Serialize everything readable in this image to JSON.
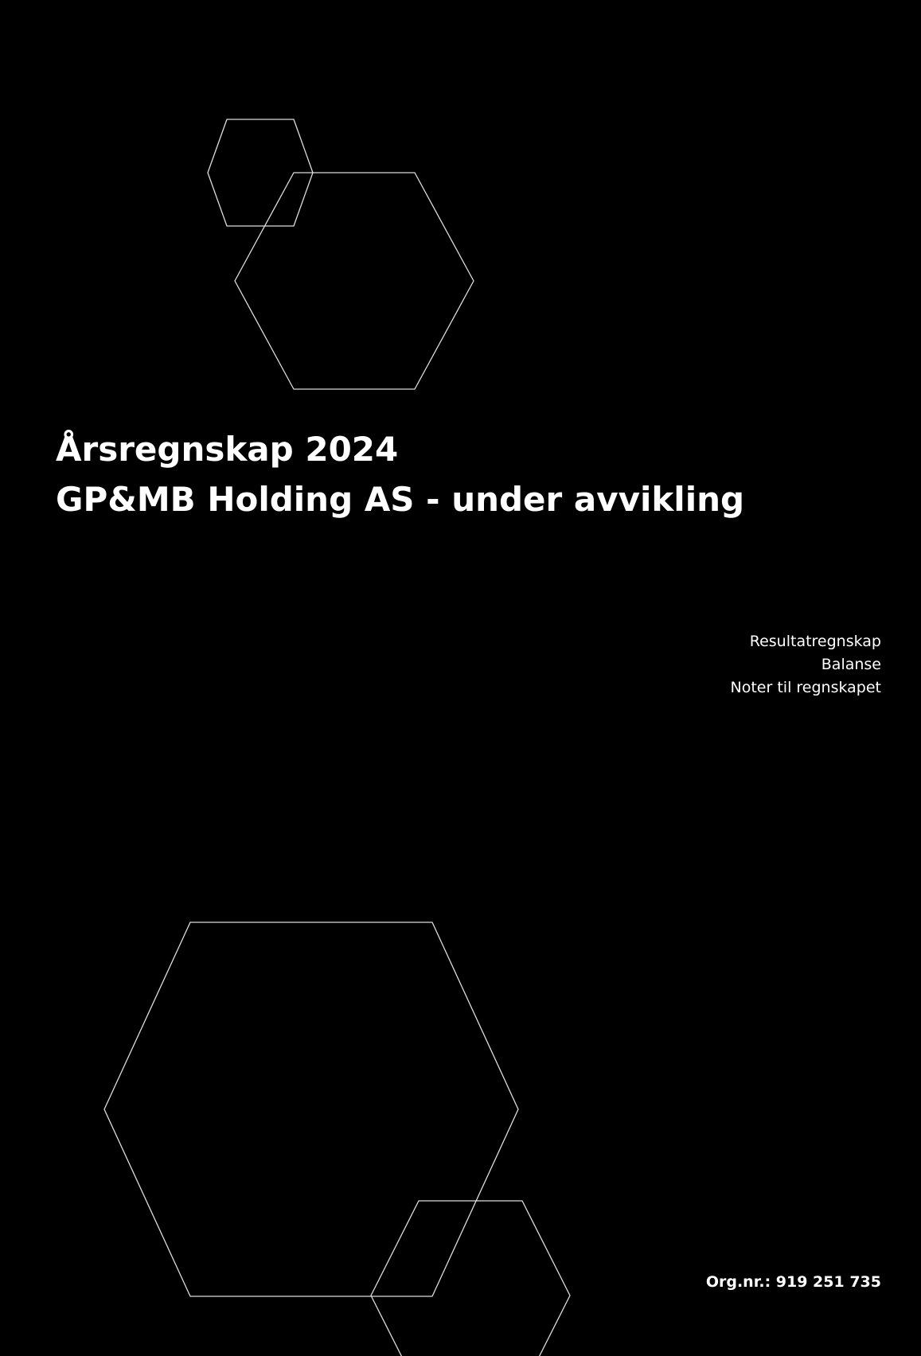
{
  "title": {
    "line1": "Årsregnskap 2024",
    "line2": "GP&MB Holding AS - under avvikling"
  },
  "contents": [
    "Resultatregnskap",
    "Balanse",
    "Noter til regnskapet"
  ],
  "org_nr": "Org.nr.: 919 251 735"
}
